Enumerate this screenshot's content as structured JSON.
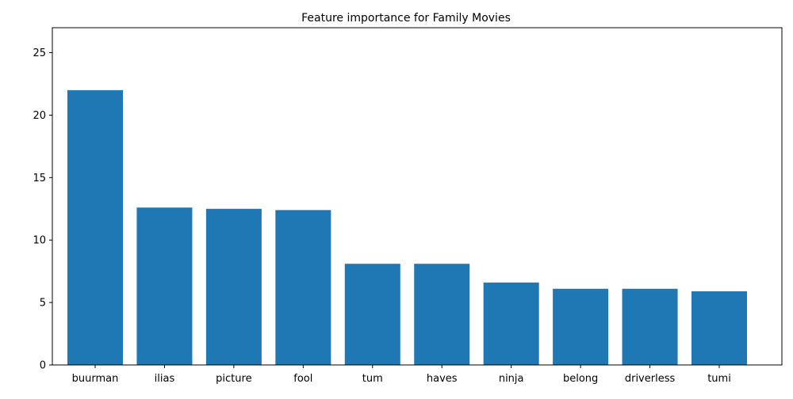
{
  "chart_data": {
    "type": "bar",
    "title": "Feature importance for Family Movies",
    "xlabel": "",
    "ylabel": "",
    "categories": [
      "buurman",
      "ilias",
      "picture",
      "fool",
      "tum",
      "haves",
      "ninja",
      "belong",
      "driverless",
      "tumi"
    ],
    "values": [
      22.0,
      12.6,
      12.5,
      12.4,
      8.1,
      8.1,
      6.6,
      6.1,
      6.1,
      5.9
    ],
    "ylim": [
      0,
      27
    ],
    "yticks": [
      0,
      5,
      10,
      15,
      20,
      25
    ],
    "grid": false,
    "legend": "none",
    "bar_color": "#1f77b4"
  }
}
